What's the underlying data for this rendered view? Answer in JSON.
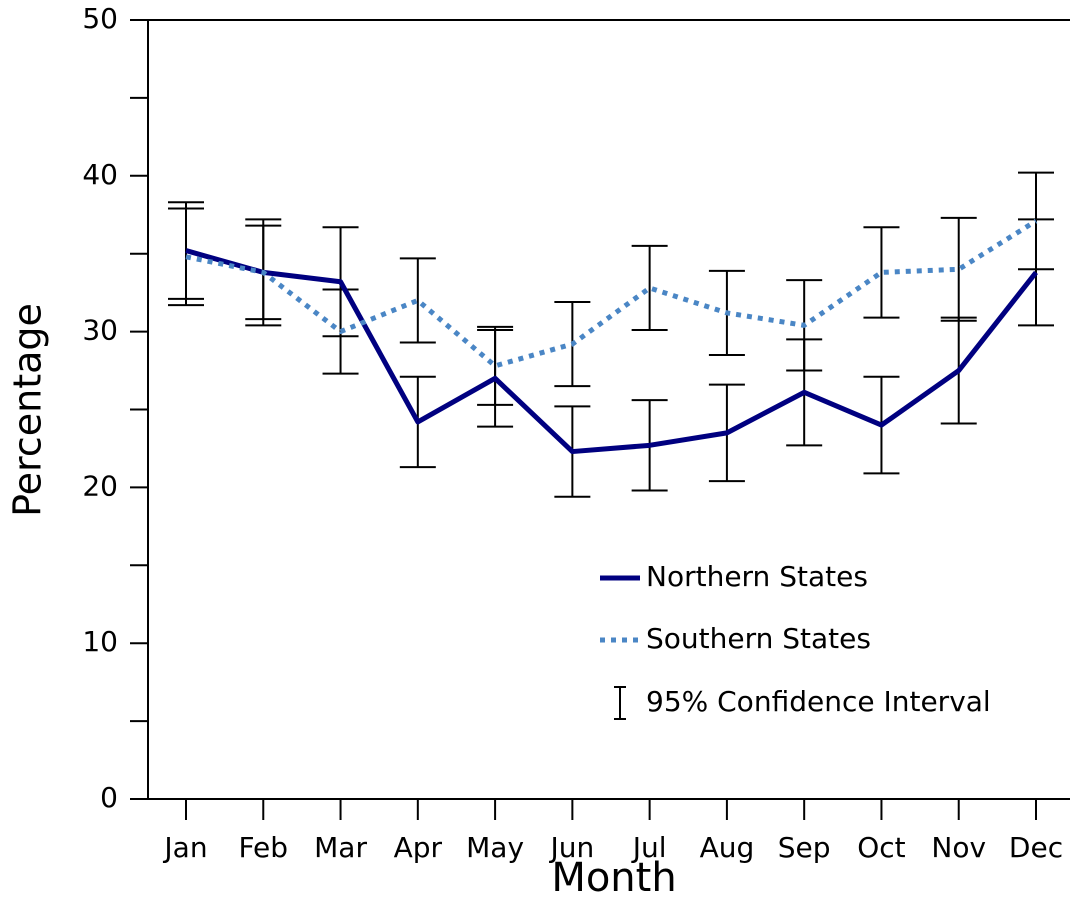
{
  "chart_data": {
    "type": "line",
    "x_label": "Month",
    "y_label": "Percentage",
    "categories": [
      "Jan",
      "Feb",
      "Mar",
      "Apr",
      "May",
      "Jun",
      "Jul",
      "Aug",
      "Sep",
      "Oct",
      "Nov",
      "Dec"
    ],
    "series": [
      {
        "name": "Northern States",
        "color": "#000080",
        "dash": "solid",
        "values": [
          35.2,
          33.8,
          33.2,
          24.2,
          27.0,
          22.3,
          22.7,
          23.5,
          26.1,
          24.0,
          27.5,
          33.8
        ],
        "errors": [
          3.1,
          3.4,
          3.5,
          2.9,
          3.1,
          2.9,
          2.9,
          3.1,
          3.4,
          3.1,
          3.4,
          3.4
        ]
      },
      {
        "name": "Southern States",
        "color": "#4a86c5",
        "dash": "dotted",
        "values": [
          34.8,
          33.8,
          30.0,
          32.0,
          27.8,
          29.2,
          32.8,
          31.2,
          30.4,
          33.8,
          34.0,
          37.1
        ],
        "errors": [
          3.1,
          3.0,
          2.7,
          2.7,
          2.5,
          2.7,
          2.7,
          2.7,
          2.9,
          2.9,
          3.3,
          3.1
        ]
      }
    ],
    "error_bar_label": "95% Confidence Interval",
    "ylim": [
      0,
      50
    ],
    "yticks": [
      0,
      10,
      20,
      30,
      40,
      50
    ],
    "yminor_ticks": [
      5,
      15,
      25,
      35,
      45
    ],
    "grid": false
  }
}
